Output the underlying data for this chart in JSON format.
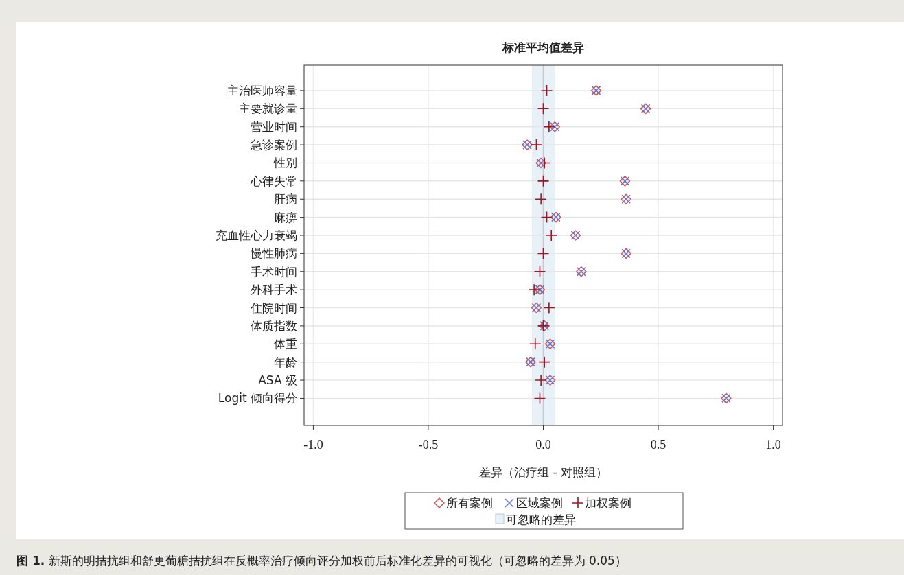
{
  "chart_data": {
    "type": "scatter",
    "title": "标准平均值差异",
    "xlabel": "差异（治疗组 - 对照组）",
    "orientation": "horizontal",
    "categories": [
      "主治医师容量",
      "主要就诊量",
      "营业时间",
      "急诊案例",
      "性别",
      "心律失常",
      "肝病",
      "麻痹",
      "充血性心力衰竭",
      "慢性肺病",
      "手术时间",
      "外科手术",
      "住院时间",
      "体质指数",
      "体重",
      "年龄",
      "ASA 级",
      "Logit 倾向得分"
    ],
    "series": [
      {
        "name": "所有案例",
        "color": "#d05a5a",
        "marker": "diamond",
        "values": [
          0.23,
          0.445,
          0.05,
          -0.07,
          -0.01,
          0.355,
          0.36,
          0.055,
          0.14,
          0.36,
          0.165,
          -0.015,
          -0.03,
          0.005,
          0.03,
          -0.055,
          0.03,
          0.795
        ]
      },
      {
        "name": "区域案例",
        "color": "#6677cc",
        "marker": "cross",
        "values": [
          0.23,
          0.445,
          0.05,
          -0.07,
          -0.01,
          0.355,
          0.36,
          0.055,
          0.14,
          0.36,
          0.165,
          -0.015,
          -0.03,
          0.005,
          0.03,
          -0.055,
          0.03,
          0.795
        ]
      },
      {
        "name": "加权案例",
        "color": "#a0141e",
        "marker": "plus",
        "values": [
          0.015,
          0,
          0.025,
          -0.03,
          0.005,
          0,
          -0.01,
          0.015,
          0.035,
          0,
          -0.015,
          -0.04,
          0.025,
          0,
          -0.035,
          0.005,
          -0.01,
          -0.015
        ]
      }
    ],
    "bands": [
      {
        "axis": "x",
        "from": -0.05,
        "to": 0.05,
        "label": "可忽略的差异",
        "color": "#e8f0f8"
      }
    ],
    "xlim": [
      -1.04,
      1.04
    ],
    "xticks": [
      {
        "value": -1,
        "label": "-1.0"
      },
      {
        "value": -0.5,
        "label": "-0.5"
      },
      {
        "value": 0,
        "label": "0.0"
      },
      {
        "value": 0.5,
        "label": "0.5"
      },
      {
        "value": 1,
        "label": "1.0"
      }
    ],
    "grid": true,
    "legend": "bottom",
    "annotations": [
      "图 1. 新斯的明拮抗组和舒更葡糖拮抗组在反概率治疗倾向评分加权前后标准化差异的可视化（可忽略的差异为 0.05）"
    ]
  }
}
